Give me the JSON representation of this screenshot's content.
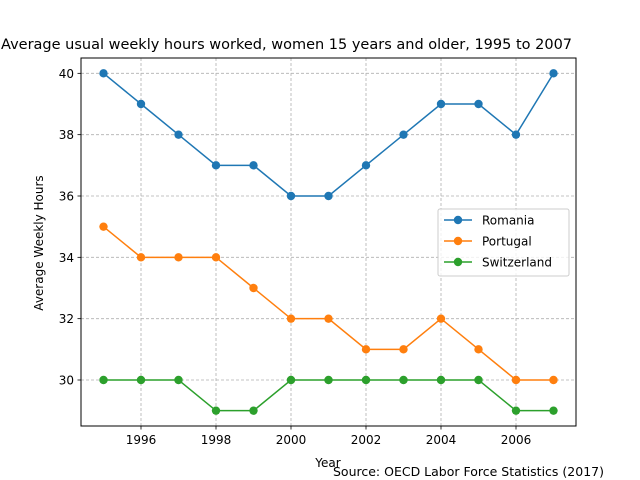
{
  "chart_data": {
    "type": "line",
    "title": "Average usual weekly hours worked, women 15 years and older, 1995 to 2007",
    "xlabel": "Year",
    "ylabel": "Average Weekly Hours",
    "source": "Source: OECD Labor Force Statistics (2017)",
    "x": [
      1995,
      1996,
      1997,
      1998,
      1999,
      2000,
      2001,
      2002,
      2003,
      2004,
      2005,
      2006,
      2007
    ],
    "xlim": [
      1994.4,
      2007.6
    ],
    "ylim": [
      28.5,
      40.5
    ],
    "xticks": [
      1996,
      1998,
      2000,
      2002,
      2004,
      2006
    ],
    "yticks": [
      30,
      32,
      34,
      36,
      38,
      40
    ],
    "grid": true,
    "legend_position": "center-right",
    "series": [
      {
        "name": "Romania",
        "color": "#1f77b4",
        "values": [
          40,
          39,
          38,
          37,
          37,
          36,
          36,
          37,
          38,
          39,
          39,
          38,
          40
        ]
      },
      {
        "name": "Portugal",
        "color": "#ff7f0e",
        "values": [
          35,
          34,
          34,
          34,
          33,
          32,
          32,
          31,
          31,
          32,
          31,
          30,
          30
        ]
      },
      {
        "name": "Switzerland",
        "color": "#2ca02c",
        "values": [
          30,
          30,
          30,
          29,
          29,
          30,
          30,
          30,
          30,
          30,
          30,
          29,
          29
        ]
      }
    ]
  }
}
